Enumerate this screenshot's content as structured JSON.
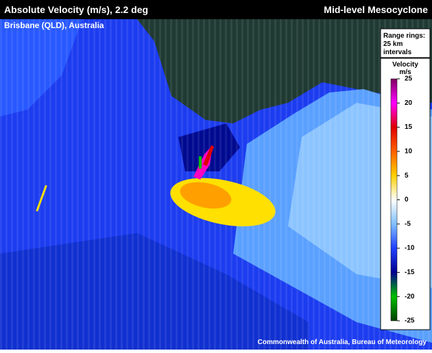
{
  "header": {
    "title": "Absolute Velocity (m/s), 2.2 deg",
    "product": "Mid-level Mesocyclone",
    "location": "Brisbane (QLD), Australia"
  },
  "legend": {
    "range_rings": [
      "Range rings:",
      "25 km",
      "intervals"
    ],
    "colorbar": {
      "title": "Velocity",
      "unit": "m/s",
      "range": [
        -25,
        25
      ],
      "ticks": [
        25,
        20,
        15,
        10,
        5,
        0,
        -5,
        -10,
        -15,
        -20,
        -25
      ]
    }
  },
  "credit": "Commonwealth of Australia, Bureau of Meteorology"
}
